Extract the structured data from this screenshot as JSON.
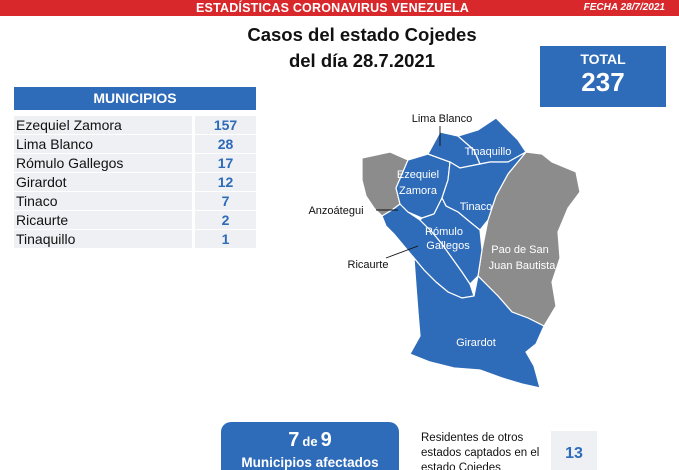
{
  "banner": {
    "title": "ESTADÍSTICAS CORONAVIRUS VENEZUELA",
    "date": "FECHA 28/7/2021"
  },
  "heading": {
    "line1": "Casos del estado Cojedes",
    "line2": "del día 28.7.2021"
  },
  "total": {
    "label": "TOTAL",
    "value": "237"
  },
  "municipios": {
    "header": "MUNICIPIOS",
    "rows": [
      {
        "name": "Ezequiel Zamora",
        "count": "157"
      },
      {
        "name": "Lima Blanco",
        "count": "28"
      },
      {
        "name": "Rómulo Gallegos",
        "count": "17"
      },
      {
        "name": "Girardot",
        "count": "12"
      },
      {
        "name": "Tinaco",
        "count": "7"
      },
      {
        "name": "Ricaurte",
        "count": "2"
      },
      {
        "name": "Tinaquillo",
        "count": "1"
      }
    ]
  },
  "map": {
    "affected_color": "#2e6bb8",
    "unaffected_color": "#8c8c8c",
    "labels": {
      "lima_blanco": "Lima Blanco",
      "tinaquillo": "Tinaquillo",
      "ezequiel_zamora_1": "Ezequiel",
      "ezequiel_zamora_2": "Zamora",
      "tinaco": "Tinaco",
      "anzoategui": "Anzoátegui",
      "romulo_gallegos_1": "Rómulo",
      "romulo_gallegos_2": "Gallegos",
      "pao_1": "Pao de San",
      "pao_2": "Juan Bautista",
      "ricaurte": "Ricaurte",
      "girardot": "Girardot"
    }
  },
  "affected": {
    "count": "7",
    "of": "de",
    "total": "9",
    "label": "Municipios afectados"
  },
  "residents": {
    "text": "Residentes de otros estados captados en el estado Cojedes",
    "count": "13"
  }
}
